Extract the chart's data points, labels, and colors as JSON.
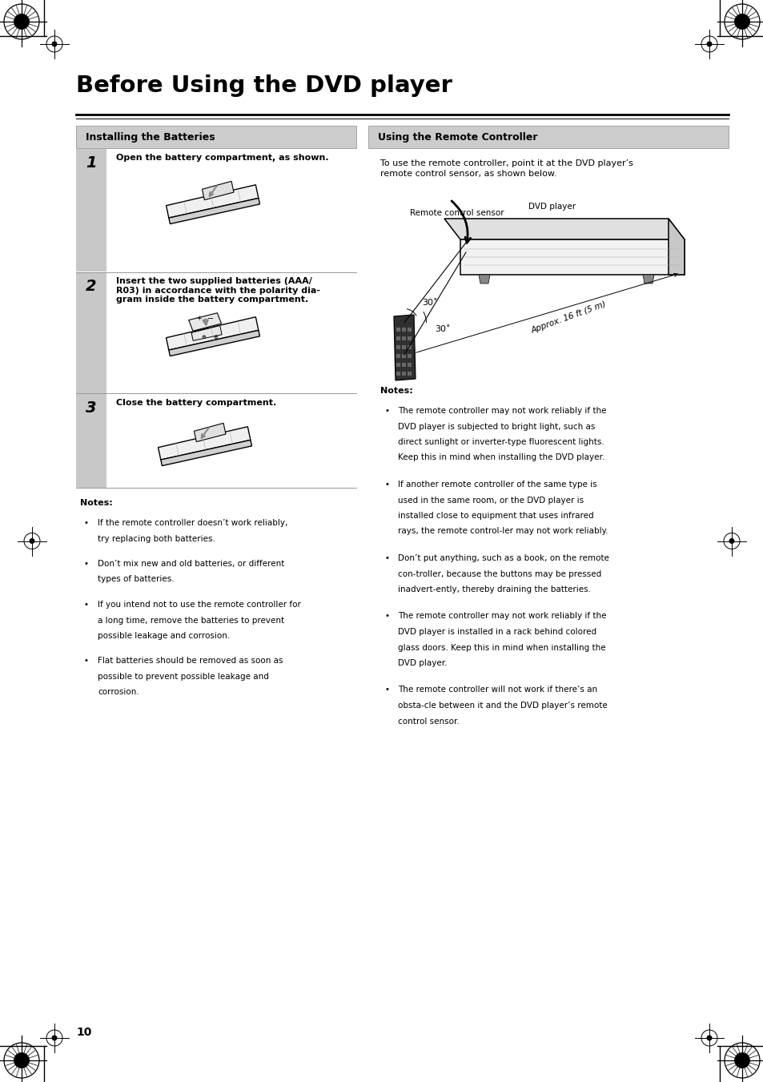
{
  "bg_color": "#ffffff",
  "page_number": "10",
  "title": "Before Using the DVD player",
  "section_left": "Installing the Batteries",
  "section_right": "Using the Remote Controller",
  "step1_num": "1",
  "step1_text": "Open the battery compartment, as shown.",
  "step2_num": "2",
  "step2_text": "Insert the two supplied batteries (AAA/\nR03) in accordance with the polarity dia-\ngram inside the battery compartment.",
  "step3_num": "3",
  "step3_text": "Close the battery compartment.",
  "notes_left_title": "Notes:",
  "notes_left": [
    "If the remote controller doesn’t work reliably, try replacing both batteries.",
    "Don’t mix new and old batteries, or different types of batteries.",
    "If you intend not to use the remote controller for a long time, remove the batteries to prevent possible leakage and corrosion.",
    "Flat batteries should be removed as soon as possible to prevent possible leakage and corrosion."
  ],
  "remote_intro": "To use the remote controller, point it at the DVD player’s\nremote control sensor, as shown below.",
  "label_sensor": "Remote control sensor",
  "label_dvd": "DVD player",
  "label_angle1": "30˚",
  "label_angle2": "30˚",
  "label_approx": "Approx. 16 ft (5 m)",
  "notes_right_title": "Notes:",
  "notes_right": [
    "The remote controller may not work reliably if the DVD player is subjected to bright light, such as direct sunlight or inverter-type fluorescent lights. Keep this in mind when installing the DVD player.",
    "If another remote controller of the same type is used in the same room, or the DVD player is installed close to equipment that uses infrared rays, the remote control-ler may not work reliably.",
    "Don’t put anything, such as a book, on the remote con-troller, because the buttons may be pressed inadvert-ently, thereby draining the batteries.",
    "The remote controller may not work reliably if the DVD player is installed in a rack behind colored glass doors. Keep this in mind when installing the DVD player.",
    "The remote controller will not work if there’s an obsta-cle between it and the DVD player’s remote control sensor."
  ]
}
